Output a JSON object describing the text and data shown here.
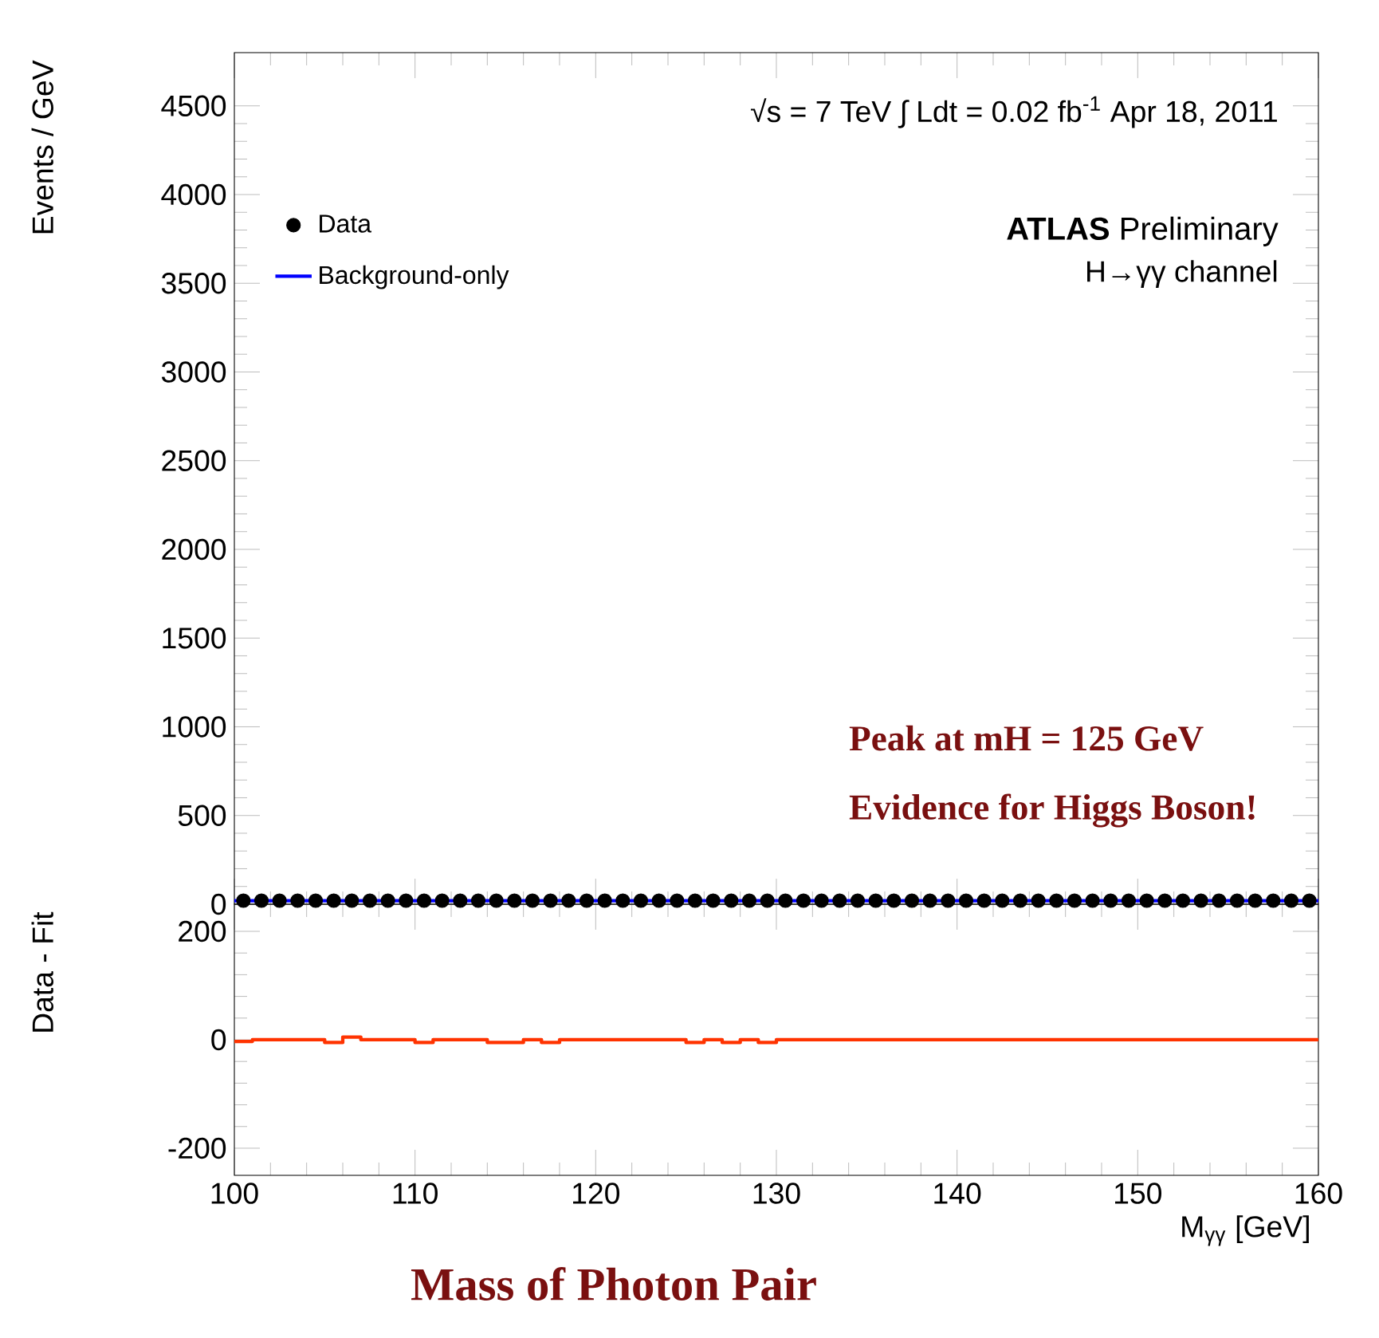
{
  "chart_data": [
    {
      "type": "scatter",
      "ylabel": "Events / GeV",
      "xlim": [
        100,
        160
      ],
      "ylim": [
        0,
        4800
      ],
      "xticks": [
        100,
        110,
        120,
        130,
        140,
        150,
        160
      ],
      "yticks": [
        0,
        500,
        1000,
        1500,
        2000,
        2500,
        3000,
        3500,
        4000,
        4500
      ],
      "tick_labels": "y",
      "legend": "top left",
      "annotations": [
        "√s = 7 TeV  ∫ Ldt = 0.02 fb$^{-1}$   Apr 18, 2011",
        "**ATLAS** Preliminary",
        "H→γγ channel",
        "Peak at mH = 125 GeV",
        "Evidence for Higgs Boson!"
      ],
      "series": [
        {
          "name": "Data",
          "type": "scatter",
          "color": "#000000",
          "x": [
            100.5,
            101.5,
            102.5,
            103.5,
            104.5,
            105.5,
            106.5,
            107.5,
            108.5,
            109.5,
            110.5,
            111.5,
            112.5,
            113.5,
            114.5,
            115.5,
            116.5,
            117.5,
            118.5,
            119.5,
            120.5,
            121.5,
            122.5,
            123.5,
            124.5,
            125.5,
            126.5,
            127.5,
            128.5,
            129.5,
            130.5,
            131.5,
            132.5,
            133.5,
            134.5,
            135.5,
            136.5,
            137.5,
            138.5,
            139.5,
            140.5,
            141.5,
            142.5,
            143.5,
            144.5,
            145.5,
            146.5,
            147.5,
            148.5,
            149.5,
            150.5,
            151.5,
            152.5,
            153.5,
            154.5,
            155.5,
            156.5,
            157.5,
            158.5,
            159.5
          ],
          "values": [
            20,
            20,
            20,
            20,
            20,
            20,
            20,
            20,
            20,
            20,
            20,
            20,
            20,
            20,
            20,
            20,
            20,
            20,
            20,
            20,
            20,
            20,
            20,
            20,
            20,
            20,
            20,
            20,
            20,
            20,
            20,
            20,
            20,
            20,
            20,
            20,
            20,
            20,
            20,
            20,
            20,
            20,
            20,
            20,
            20,
            20,
            20,
            20,
            20,
            20,
            20,
            20,
            20,
            20,
            20,
            20,
            20,
            20,
            20,
            20
          ]
        },
        {
          "name": "Background-only",
          "type": "line",
          "color": "#0000ff",
          "x": [
            100,
            160
          ],
          "values": [
            20,
            20
          ]
        }
      ]
    },
    {
      "type": "step",
      "ylabel": "Data - Fit",
      "xlabel": "M$_{γγ}$ [GeV]",
      "xlim": [
        100,
        160
      ],
      "ylim": [
        -250,
        250
      ],
      "xticks": [
        100,
        110,
        120,
        130,
        140,
        150,
        160
      ],
      "yticks": [
        -200,
        0,
        200
      ],
      "annotations": [
        "Mass of Photon Pair"
      ],
      "series": [
        {
          "color": "#ff3300",
          "x": [
            100,
            101,
            105,
            106,
            107,
            110,
            111,
            114,
            116,
            117,
            118,
            125,
            126,
            127,
            128,
            129,
            130,
            160
          ],
          "values": [
            -3,
            0,
            -5,
            5,
            0,
            -5,
            0,
            -5,
            0,
            -5,
            0,
            -5,
            0,
            -5,
            0,
            -5,
            0,
            0
          ]
        }
      ]
    }
  ]
}
